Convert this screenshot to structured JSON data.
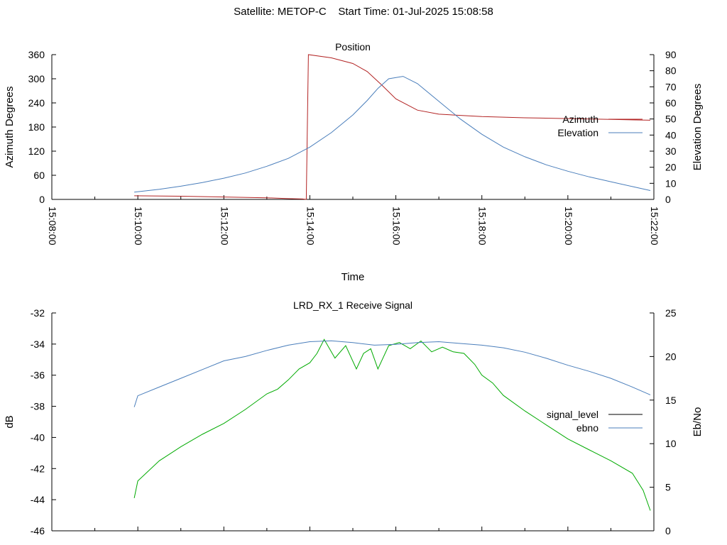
{
  "page": {
    "title": "Satellite: METOP-C    Start Time: 01-Jul-2025 15:08:58"
  },
  "colors": {
    "azimuth": "#b22222",
    "elevation": "#4a7ebb",
    "signal_level": "#00aa00",
    "ebno": "#4a7ebb",
    "axis": "#000000"
  },
  "chart_data": [
    {
      "type": "line",
      "title": "Position",
      "xlabel": "Time",
      "ylabel": "Azimuth Degrees",
      "y2label": "Elevation Degrees",
      "xticks": [
        "15:08:00",
        "15:10:00",
        "15:12:00",
        "15:14:00",
        "15:16:00",
        "15:18:00",
        "15:20:00",
        "15:22:00"
      ],
      "xlim": [
        "15:08:00",
        "15:22:00"
      ],
      "ylim": [
        0,
        360
      ],
      "yticks": [
        0,
        60,
        120,
        180,
        240,
        300,
        360
      ],
      "y2lim": [
        0,
        90
      ],
      "y2ticks": [
        0,
        10,
        20,
        30,
        40,
        50,
        60,
        70,
        80,
        90
      ],
      "legend_position": "right",
      "series": [
        {
          "name": "Azimuth",
          "axis": "left",
          "x": [
            "15:09:55",
            "15:11:00",
            "15:12:00",
            "15:13:00",
            "15:13:30",
            "15:13:50",
            "15:13:55",
            "15:13:58",
            "15:14:30",
            "15:15:00",
            "15:15:20",
            "15:15:40",
            "15:16:00",
            "15:16:30",
            "15:17:00",
            "15:18:00",
            "15:19:00",
            "15:20:00",
            "15:21:00",
            "15:21:55"
          ],
          "values": [
            9,
            8,
            6,
            4,
            2,
            1,
            0,
            360,
            352,
            338,
            318,
            285,
            250,
            222,
            212,
            206,
            203,
            201,
            199,
            197
          ]
        },
        {
          "name": "Elevation",
          "axis": "right",
          "x": [
            "15:09:55",
            "15:10:30",
            "15:11:00",
            "15:11:30",
            "15:12:00",
            "15:12:30",
            "15:13:00",
            "15:13:30",
            "15:14:00",
            "15:14:30",
            "15:15:00",
            "15:15:20",
            "15:15:35",
            "15:15:50",
            "15:16:10",
            "15:16:30",
            "15:17:00",
            "15:17:30",
            "15:18:00",
            "15:18:30",
            "15:19:00",
            "15:19:30",
            "15:20:00",
            "15:20:30",
            "15:21:00",
            "15:21:30",
            "15:21:55"
          ],
          "values": [
            4.5,
            6.3,
            8.2,
            10.5,
            13.2,
            16.4,
            20.6,
            25.5,
            32.5,
            41.5,
            52.5,
            61.5,
            69,
            75,
            76.5,
            72,
            61,
            50,
            40.5,
            32.5,
            26.5,
            21.5,
            17.5,
            14,
            11,
            8,
            5.5
          ]
        }
      ]
    },
    {
      "type": "line",
      "title": "LRD_RX_1 Receive Signal",
      "ylabel": "dB",
      "y2label": "Eb/No",
      "ylim": [
        -46,
        -32
      ],
      "yticks": [
        -46,
        -44,
        -42,
        -40,
        -38,
        -36,
        -34,
        -32
      ],
      "y2lim": [
        0,
        25
      ],
      "y2ticks": [
        0,
        5,
        10,
        15,
        20,
        25
      ],
      "legend_position": "right",
      "legend": [
        {
          "name": "signal_level",
          "color": "#000000"
        },
        {
          "name": "ebno",
          "color": "#4a7ebb"
        }
      ],
      "series": [
        {
          "name": "",
          "axis": "left",
          "color": "#00aa00",
          "x": [
            "15:09:55",
            "15:10:00",
            "15:10:30",
            "15:11:00",
            "15:11:30",
            "15:12:00",
            "15:12:30",
            "15:13:00",
            "15:13:15",
            "15:13:30",
            "15:13:45",
            "15:14:00",
            "15:14:10",
            "15:14:20",
            "15:14:35",
            "15:14:50",
            "15:15:05",
            "15:15:15",
            "15:15:25",
            "15:15:35",
            "15:15:50",
            "15:16:05",
            "15:16:20",
            "15:16:35",
            "15:16:50",
            "15:17:05",
            "15:17:20",
            "15:17:35",
            "15:17:50",
            "15:18:00",
            "15:18:15",
            "15:18:30",
            "15:19:00",
            "15:19:30",
            "15:20:00",
            "15:20:30",
            "15:21:00",
            "15:21:30",
            "15:21:45",
            "15:21:55"
          ],
          "values": [
            -43.9,
            -42.8,
            -41.5,
            -40.6,
            -39.8,
            -39.1,
            -38.2,
            -37.2,
            -36.9,
            -36.3,
            -35.6,
            -35.2,
            -34.6,
            -33.7,
            -34.9,
            -34.1,
            -35.6,
            -34.6,
            -34.3,
            -35.6,
            -34.1,
            -33.9,
            -34.3,
            -33.8,
            -34.5,
            -34.2,
            -34.5,
            -34.6,
            -35.3,
            -36.0,
            -36.5,
            -37.3,
            -38.3,
            -39.2,
            -40.1,
            -40.8,
            -41.5,
            -42.3,
            -43.4,
            -44.7
          ]
        },
        {
          "name": "",
          "axis": "right",
          "color": "#4a7ebb",
          "x": [
            "15:09:55",
            "15:10:00",
            "15:10:30",
            "15:11:00",
            "15:11:30",
            "15:12:00",
            "15:12:30",
            "15:13:00",
            "15:13:30",
            "15:14:00",
            "15:14:30",
            "15:15:00",
            "15:15:30",
            "15:16:00",
            "15:16:30",
            "15:17:00",
            "15:17:30",
            "15:18:00",
            "15:18:30",
            "15:19:00",
            "15:19:30",
            "15:20:00",
            "15:20:30",
            "15:21:00",
            "15:21:30",
            "15:21:55"
          ],
          "values": [
            14.2,
            15.5,
            16.5,
            17.5,
            18.5,
            19.5,
            20.0,
            20.7,
            21.3,
            21.7,
            21.8,
            21.6,
            21.3,
            21.4,
            21.6,
            21.7,
            21.5,
            21.3,
            21.0,
            20.5,
            19.8,
            19.0,
            18.3,
            17.5,
            16.5,
            15.6
          ]
        }
      ]
    }
  ]
}
